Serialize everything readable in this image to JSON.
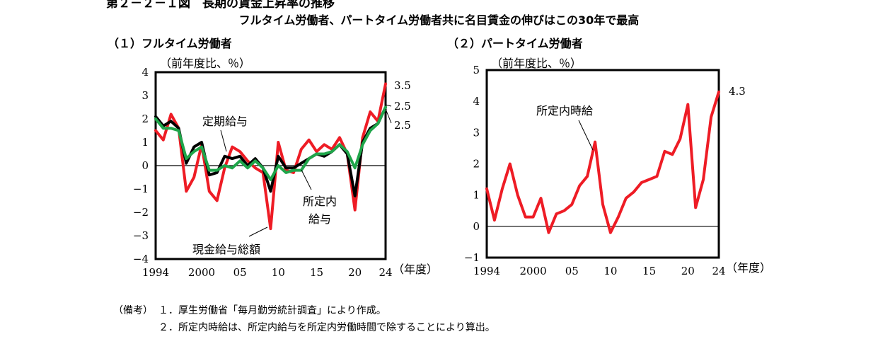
{
  "figure": {
    "title": "第２－２－１図　長期の賃金上昇率の推移",
    "subtitle": "フルタイム労働者、パートタイム労働者共に名目賃金の伸びはこの30年で最高"
  },
  "colors": {
    "red": "#ee1c25",
    "black": "#000000",
    "green": "#1fa54a"
  },
  "notes": {
    "label": "（備考）",
    "items": [
      "１．厚生労働省「毎月勤労統計調査」により作成。",
      "２．所定内時給は、所定内給与を所定内労働時間で除することにより算出。"
    ]
  },
  "chart_data": [
    {
      "type": "line",
      "title": "（１）フルタイム労働者",
      "ylabel": "（前年度比、％）",
      "xlabel": "（年度）",
      "x": [
        1994,
        1995,
        1996,
        1997,
        1998,
        1999,
        2000,
        2001,
        2002,
        2003,
        2004,
        2005,
        2006,
        2007,
        2008,
        2009,
        2010,
        2011,
        2012,
        2013,
        2014,
        2015,
        2016,
        2017,
        2018,
        2019,
        2020,
        2021,
        2022,
        2023,
        2024
      ],
      "xlim": [
        1994,
        2024
      ],
      "ylim": [
        -4,
        4
      ],
      "x_ticks": [
        {
          "value": 1994,
          "label": "1994"
        },
        {
          "value": 2000,
          "label": "2000"
        },
        {
          "value": 2005,
          "label": "05"
        },
        {
          "value": 2010,
          "label": "10"
        },
        {
          "value": 2015,
          "label": "15"
        },
        {
          "value": 2020,
          "label": "20"
        },
        {
          "value": 2024,
          "label": "24"
        }
      ],
      "y_ticks": [
        "4",
        "3",
        "2",
        "1",
        "0",
        "−1",
        "−2",
        "−3",
        "−4"
      ],
      "series": [
        {
          "name": "現金給与総額",
          "color": "red",
          "values": [
            1.5,
            1.1,
            2.2,
            1.6,
            -1.1,
            -0.5,
            0.9,
            -1.1,
            -1.5,
            -0.1,
            0.8,
            0.6,
            0.2,
            -0.1,
            -0.3,
            -2.7,
            1.0,
            -0.2,
            -0.3,
            0.7,
            1.1,
            0.6,
            0.9,
            0.7,
            1.2,
            0.5,
            -1.9,
            1.2,
            2.3,
            1.9,
            3.5
          ]
        },
        {
          "name": "定期給与",
          "color": "black",
          "values": [
            2.1,
            1.7,
            1.9,
            1.6,
            0.1,
            0.8,
            1.0,
            -0.4,
            -0.3,
            0.4,
            0.3,
            0.4,
            0.0,
            0.3,
            -0.1,
            -1.1,
            0.4,
            -0.1,
            -0.1,
            0.1,
            0.3,
            0.5,
            0.4,
            0.6,
            0.9,
            0.5,
            -1.3,
            1.0,
            1.6,
            1.8,
            2.5
          ]
        },
        {
          "name": "所定内給与",
          "color": "green",
          "values": [
            2.0,
            1.6,
            1.6,
            1.5,
            0.3,
            0.6,
            0.8,
            -0.2,
            -0.2,
            0.0,
            -0.1,
            0.2,
            -0.1,
            0.2,
            -0.1,
            -0.6,
            0.0,
            -0.3,
            -0.2,
            -0.2,
            0.3,
            0.5,
            0.5,
            0.6,
            0.9,
            0.6,
            -0.1,
            0.9,
            1.5,
            1.8,
            2.5
          ]
        }
      ],
      "end_labels": [
        "3.5",
        "2.5",
        "2.5"
      ],
      "annotations": [
        "定期給与",
        "所定内",
        "給与",
        "現金給与総額"
      ]
    },
    {
      "type": "line",
      "title": "（２）パートタイム労働者",
      "ylabel": "（前年度比、％）",
      "xlabel": "（年度）",
      "x": [
        1994,
        1995,
        1996,
        1997,
        1998,
        1999,
        2000,
        2001,
        2002,
        2003,
        2004,
        2005,
        2006,
        2007,
        2008,
        2009,
        2010,
        2011,
        2012,
        2013,
        2014,
        2015,
        2016,
        2017,
        2018,
        2019,
        2020,
        2021,
        2022,
        2023,
        2024
      ],
      "xlim": [
        1994,
        2024
      ],
      "ylim": [
        -1,
        5
      ],
      "x_ticks": [
        {
          "value": 1994,
          "label": "1994"
        },
        {
          "value": 2000,
          "label": "2000"
        },
        {
          "value": 2005,
          "label": "05"
        },
        {
          "value": 2010,
          "label": "10"
        },
        {
          "value": 2015,
          "label": "15"
        },
        {
          "value": 2020,
          "label": "20"
        },
        {
          "value": 2024,
          "label": "24"
        }
      ],
      "y_ticks": [
        "5",
        "4",
        "3",
        "2",
        "1",
        "0",
        "−1"
      ],
      "series": [
        {
          "name": "所定内時給",
          "color": "red",
          "values": [
            1.2,
            0.2,
            1.2,
            2.0,
            1.0,
            0.3,
            0.3,
            0.9,
            -0.2,
            0.4,
            0.5,
            0.7,
            1.3,
            1.6,
            2.7,
            0.7,
            -0.2,
            0.3,
            0.9,
            1.1,
            1.4,
            1.5,
            1.6,
            2.4,
            2.3,
            2.8,
            3.9,
            0.6,
            1.5,
            3.5,
            4.3
          ]
        }
      ],
      "end_labels": [
        "4.3"
      ],
      "annotations": [
        "所定内時給"
      ]
    }
  ]
}
